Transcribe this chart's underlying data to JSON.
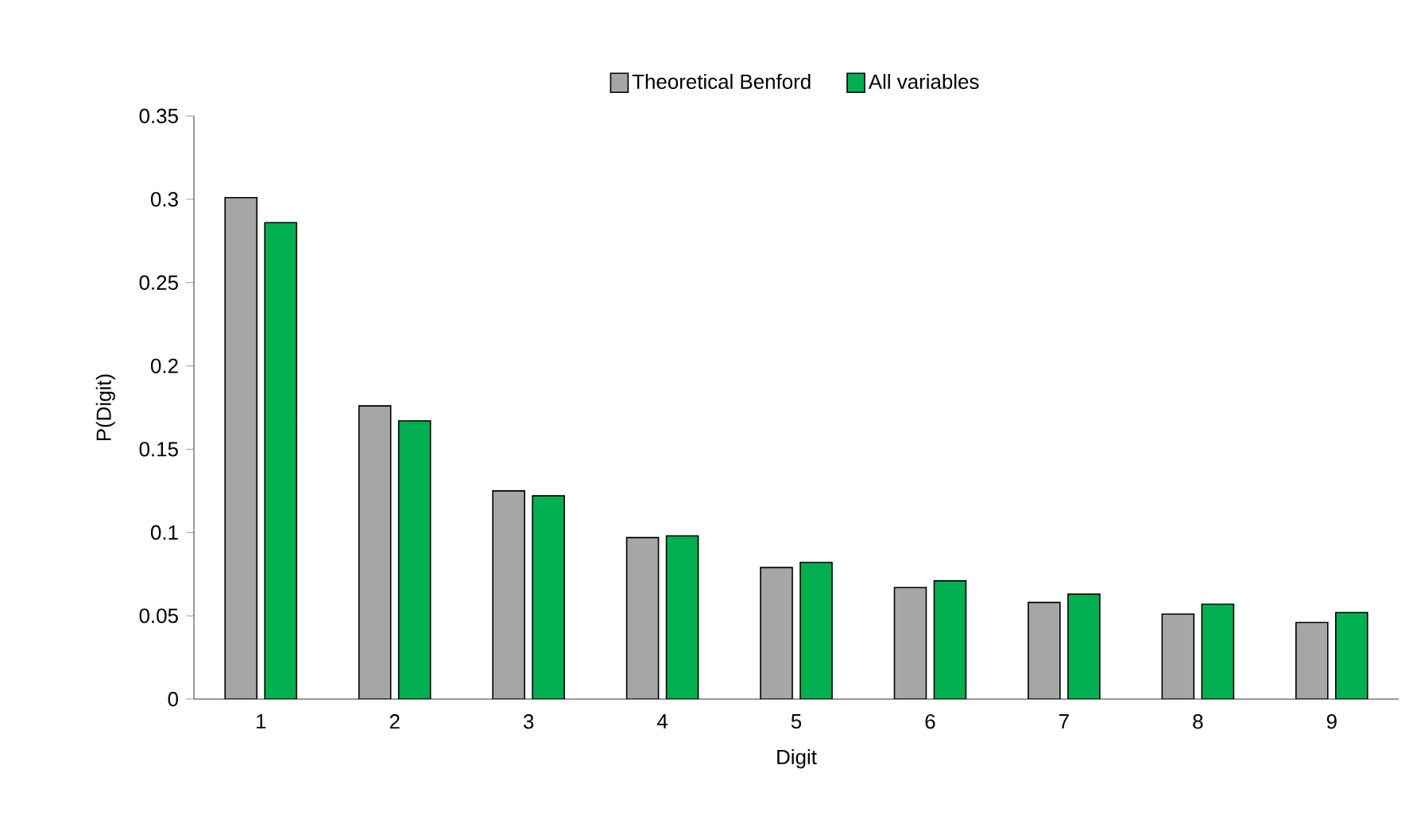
{
  "chart_data": {
    "type": "bar",
    "xlabel": "Digit",
    "ylabel": "P(Digit)",
    "categories": [
      "1",
      "2",
      "3",
      "4",
      "5",
      "6",
      "7",
      "8",
      "9"
    ],
    "series": [
      {
        "name": "Theoretical Benford",
        "color": "#a6a6a6",
        "values": [
          0.301,
          0.176,
          0.125,
          0.097,
          0.079,
          0.067,
          0.058,
          0.051,
          0.046
        ]
      },
      {
        "name": "All variables",
        "color": "#00b050",
        "values": [
          0.286,
          0.167,
          0.122,
          0.098,
          0.082,
          0.071,
          0.063,
          0.057,
          0.052
        ]
      }
    ],
    "ylim": [
      0,
      0.35
    ],
    "yticks": [
      0,
      0.05,
      0.1,
      0.15,
      0.2,
      0.25,
      0.3,
      0.35
    ],
    "grid": false,
    "legend": "top"
  }
}
